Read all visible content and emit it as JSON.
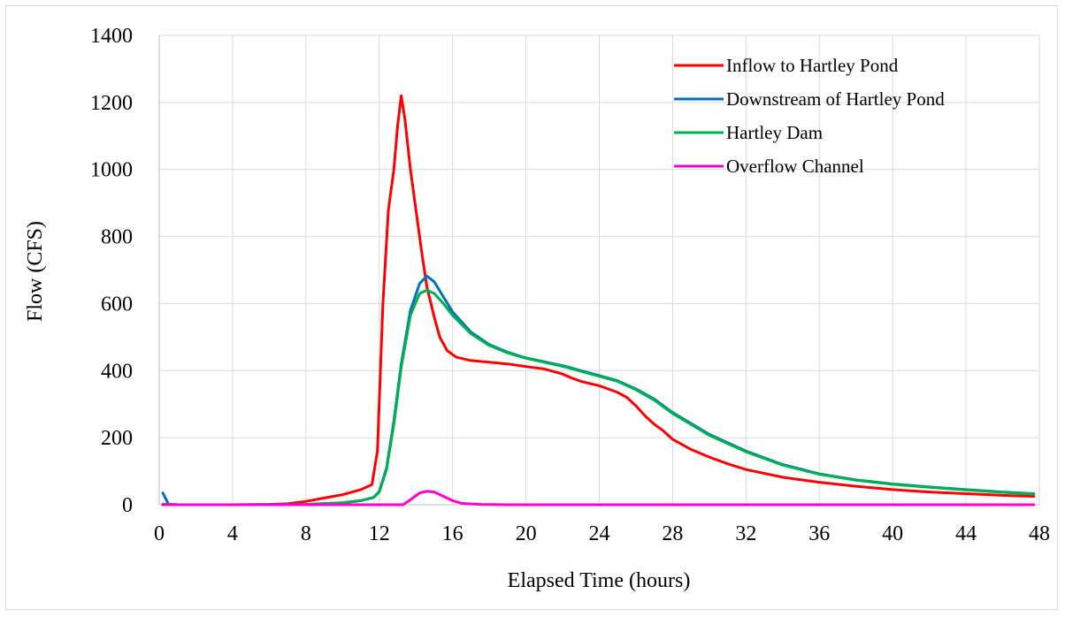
{
  "chart_data": {
    "type": "line",
    "title": "",
    "xlabel": "Elapsed Time (hours)",
    "ylabel": "Flow (CFS)",
    "xlim": [
      0,
      48
    ],
    "ylim": [
      0,
      1400
    ],
    "x_ticks": [
      0,
      4,
      8,
      12,
      16,
      20,
      24,
      28,
      32,
      36,
      40,
      44,
      48
    ],
    "y_ticks": [
      0,
      200,
      400,
      600,
      800,
      1000,
      1200,
      1400
    ],
    "grid": true,
    "legend_position": "top-right",
    "series": [
      {
        "name": "Inflow to Hartley Pond",
        "color": "#ff0000",
        "points": [
          [
            0.2,
            0
          ],
          [
            2,
            0
          ],
          [
            4,
            0
          ],
          [
            6,
            1
          ],
          [
            7,
            3
          ],
          [
            8,
            10
          ],
          [
            9,
            20
          ],
          [
            10,
            30
          ],
          [
            11,
            45
          ],
          [
            11.6,
            60
          ],
          [
            11.9,
            160
          ],
          [
            12.2,
            600
          ],
          [
            12.5,
            880
          ],
          [
            12.8,
            1000
          ],
          [
            13,
            1130
          ],
          [
            13.2,
            1220
          ],
          [
            13.4,
            1150
          ],
          [
            13.7,
            1000
          ],
          [
            14,
            880
          ],
          [
            14.3,
            760
          ],
          [
            14.6,
            650
          ],
          [
            15,
            560
          ],
          [
            15.3,
            500
          ],
          [
            15.7,
            460
          ],
          [
            16.2,
            440
          ],
          [
            17,
            430
          ],
          [
            18,
            425
          ],
          [
            19,
            420
          ],
          [
            20,
            412
          ],
          [
            21,
            405
          ],
          [
            22,
            390
          ],
          [
            22.5,
            378
          ],
          [
            23,
            368
          ],
          [
            24,
            355
          ],
          [
            25,
            335
          ],
          [
            25.5,
            320
          ],
          [
            26,
            295
          ],
          [
            26.5,
            265
          ],
          [
            27,
            240
          ],
          [
            27.5,
            220
          ],
          [
            28,
            195
          ],
          [
            29,
            165
          ],
          [
            30,
            142
          ],
          [
            31,
            122
          ],
          [
            32,
            105
          ],
          [
            34,
            82
          ],
          [
            36,
            67
          ],
          [
            38,
            55
          ],
          [
            40,
            45
          ],
          [
            42,
            38
          ],
          [
            44,
            33
          ],
          [
            46,
            28
          ],
          [
            47.7,
            25
          ]
        ]
      },
      {
        "name": "Downstream of Hartley Pond",
        "color": "#0070c0",
        "points": [
          [
            0.2,
            35
          ],
          [
            0.5,
            2
          ],
          [
            1,
            0
          ],
          [
            4,
            0
          ],
          [
            8,
            1
          ],
          [
            10,
            6
          ],
          [
            11,
            12
          ],
          [
            11.7,
            22
          ],
          [
            12,
            40
          ],
          [
            12.4,
            110
          ],
          [
            12.8,
            250
          ],
          [
            13.2,
            420
          ],
          [
            13.7,
            580
          ],
          [
            14.2,
            660
          ],
          [
            14.6,
            682
          ],
          [
            15,
            665
          ],
          [
            15.5,
            620
          ],
          [
            16,
            575
          ],
          [
            17,
            515
          ],
          [
            18,
            478
          ],
          [
            19,
            455
          ],
          [
            20,
            438
          ],
          [
            22,
            415
          ],
          [
            24,
            385
          ],
          [
            25,
            370
          ],
          [
            26,
            345
          ],
          [
            27,
            315
          ],
          [
            28,
            275
          ],
          [
            30,
            210
          ],
          [
            32,
            160
          ],
          [
            34,
            120
          ],
          [
            36,
            92
          ],
          [
            38,
            74
          ],
          [
            40,
            62
          ],
          [
            42,
            53
          ],
          [
            44,
            45
          ],
          [
            46,
            38
          ],
          [
            47.7,
            33
          ]
        ]
      },
      {
        "name": "Hartley Dam",
        "color": "#00b050",
        "points": [
          [
            0.2,
            2
          ],
          [
            1,
            0
          ],
          [
            4,
            0
          ],
          [
            8,
            1
          ],
          [
            10,
            6
          ],
          [
            11,
            12
          ],
          [
            11.7,
            22
          ],
          [
            12,
            38
          ],
          [
            12.4,
            105
          ],
          [
            12.8,
            240
          ],
          [
            13.2,
            410
          ],
          [
            13.7,
            565
          ],
          [
            14.2,
            630
          ],
          [
            14.6,
            640
          ],
          [
            15,
            630
          ],
          [
            15.5,
            600
          ],
          [
            16,
            565
          ],
          [
            17,
            510
          ],
          [
            18,
            475
          ],
          [
            19,
            453
          ],
          [
            20,
            437
          ],
          [
            22,
            413
          ],
          [
            24,
            383
          ],
          [
            25,
            368
          ],
          [
            26,
            343
          ],
          [
            27,
            312
          ],
          [
            28,
            272
          ],
          [
            30,
            207
          ],
          [
            32,
            158
          ],
          [
            34,
            118
          ],
          [
            36,
            91
          ],
          [
            38,
            73
          ],
          [
            40,
            61
          ],
          [
            42,
            52
          ],
          [
            44,
            44
          ],
          [
            46,
            37
          ],
          [
            47.7,
            32
          ]
        ]
      },
      {
        "name": "Overflow Channel",
        "color": "#ff00cc",
        "points": [
          [
            0.2,
            0
          ],
          [
            4,
            0
          ],
          [
            8,
            0
          ],
          [
            12,
            0
          ],
          [
            13.3,
            0
          ],
          [
            13.7,
            15
          ],
          [
            14.2,
            35
          ],
          [
            14.6,
            40
          ],
          [
            15,
            38
          ],
          [
            15.5,
            25
          ],
          [
            16,
            12
          ],
          [
            16.5,
            4
          ],
          [
            17.5,
            1
          ],
          [
            19,
            0
          ],
          [
            24,
            0
          ],
          [
            30,
            0
          ],
          [
            36,
            0
          ],
          [
            42,
            0
          ],
          [
            47.7,
            0
          ]
        ]
      }
    ]
  }
}
